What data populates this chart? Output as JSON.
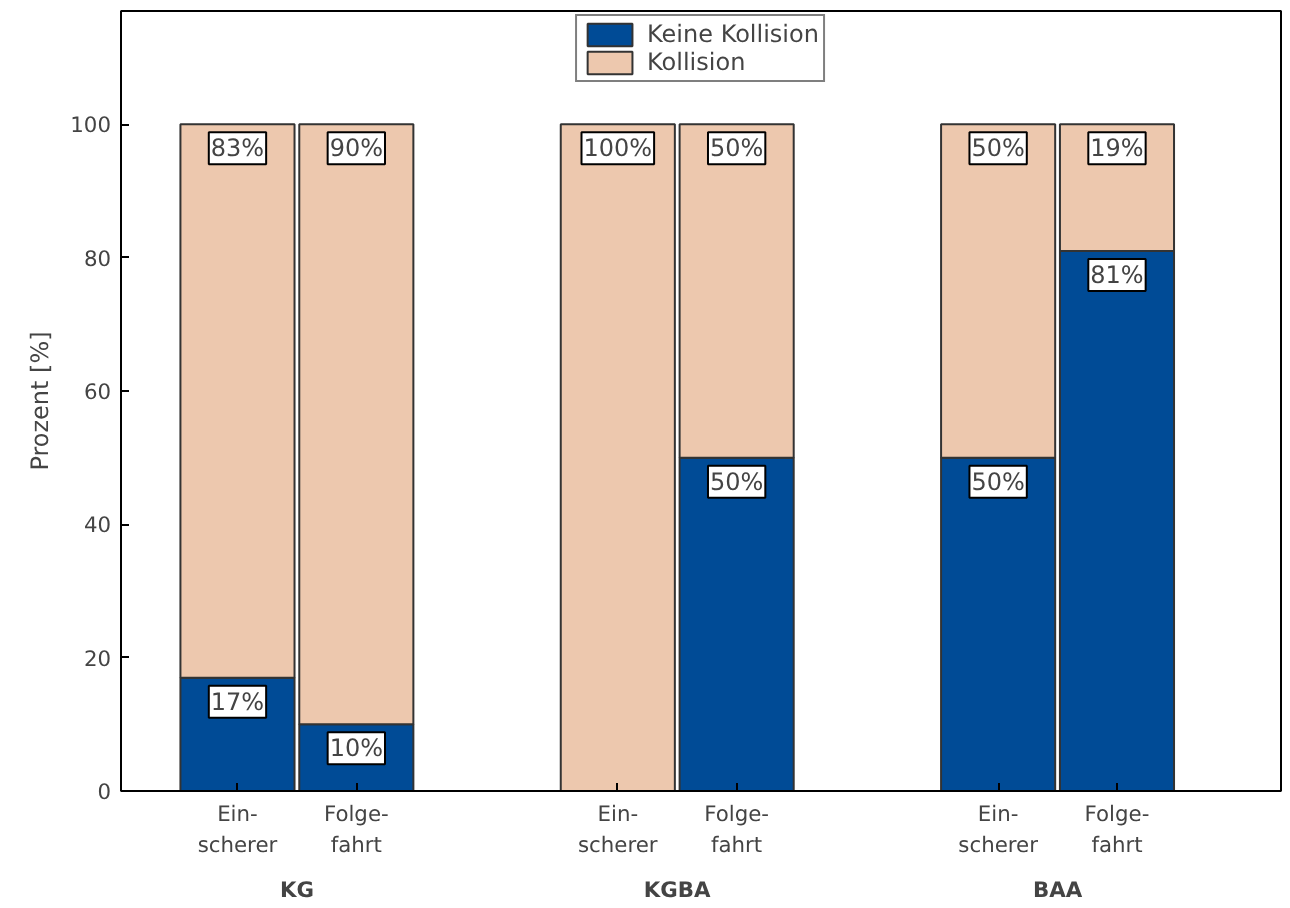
{
  "chart_data": {
    "type": "bar",
    "stacked": true,
    "ylabel": "Prozent [%]",
    "categories": [
      "Ein-\nscherer",
      "Folge-\nfahrt",
      "Ein-\nscherer",
      "Folge-\nfahrt",
      "Ein-\nscherer",
      "Folge-\nfahrt"
    ],
    "annotations": [
      "KG",
      "KGBA",
      "BAA"
    ],
    "series": [
      {
        "name": "Keine Kollision",
        "color": "#004b96",
        "values": [
          17,
          10,
          0,
          50,
          50,
          81
        ],
        "value_labels": [
          "17%",
          "10%",
          null,
          "50%",
          "50%",
          "81%"
        ]
      },
      {
        "name": "Kollision",
        "color": "#edc8ae",
        "values": [
          83,
          90,
          100,
          50,
          50,
          19
        ],
        "value_labels": [
          "83%",
          "90%",
          "100%",
          "50%",
          "50%",
          "19%"
        ]
      }
    ],
    "ylim": [
      0,
      117
    ],
    "yticks": [
      0,
      20,
      40,
      60,
      80,
      100
    ],
    "grid": false,
    "legend": "top"
  }
}
